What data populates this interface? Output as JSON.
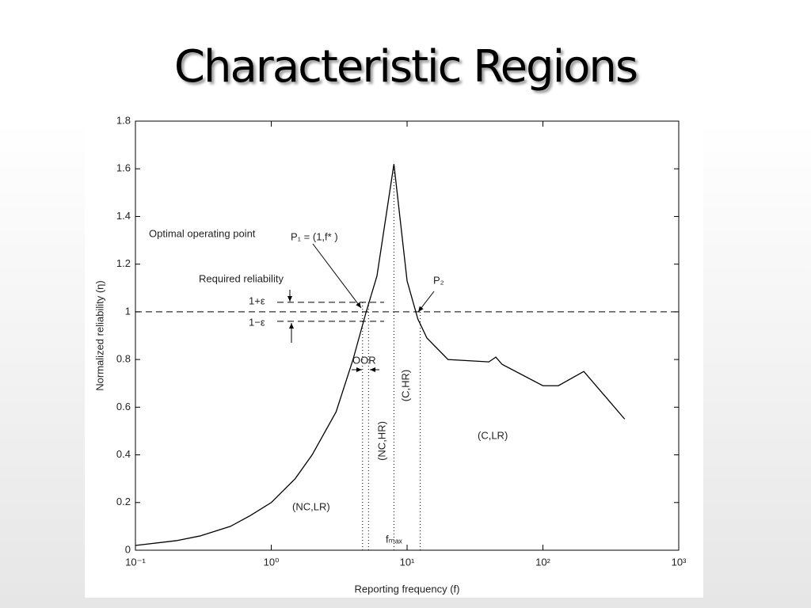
{
  "title": "Characteristic Regions",
  "chart_data": {
    "type": "line",
    "xlabel": "Reporting frequency (f)",
    "ylabel": "Normalized reliability (η)",
    "xscale": "log",
    "x": [
      0.1,
      0.2,
      0.3,
      0.5,
      0.7,
      1,
      1.5,
      2,
      3,
      4,
      5,
      6,
      8,
      10,
      12,
      14,
      20,
      40,
      45,
      50,
      100,
      130,
      200,
      400
    ],
    "series": [
      {
        "color": "#000000",
        "values": [
          0.02,
          0.04,
          0.06,
          0.1,
          0.145,
          0.2,
          0.3,
          0.4,
          0.58,
          0.8,
          1.0,
          1.15,
          1.62,
          1.13,
          0.97,
          0.89,
          0.8,
          0.79,
          0.81,
          0.78,
          0.69,
          0.69,
          0.75,
          0.55
        ]
      }
    ],
    "xlim": [
      0.1,
      1000
    ],
    "xticks": [
      {
        "value": 0.1,
        "label": "10⁻¹"
      },
      {
        "value": 1,
        "label": "10⁰"
      },
      {
        "value": 10,
        "label": "10¹"
      },
      {
        "value": 100,
        "label": "10²"
      },
      {
        "value": 1000,
        "label": "10³"
      }
    ],
    "ylim": [
      0,
      1.8
    ],
    "yticks": [
      0,
      0.2,
      0.4,
      0.6,
      0.8,
      1,
      1.2,
      1.4,
      1.6,
      1.8
    ],
    "reference_y": [
      1.04,
      1,
      0.96
    ],
    "reference_x": [
      4.7,
      5.2,
      8,
      12.5
    ],
    "annotations": [
      "Optimal operating point",
      "P₁ = (1,f* )",
      "Required reliability",
      "1+ε",
      "1−ε",
      "OOR",
      "(C,HR)",
      "(NC,HR)",
      "(C,LR)",
      "(NC,LR)",
      "P₂",
      "fₘₐₓ"
    ]
  }
}
